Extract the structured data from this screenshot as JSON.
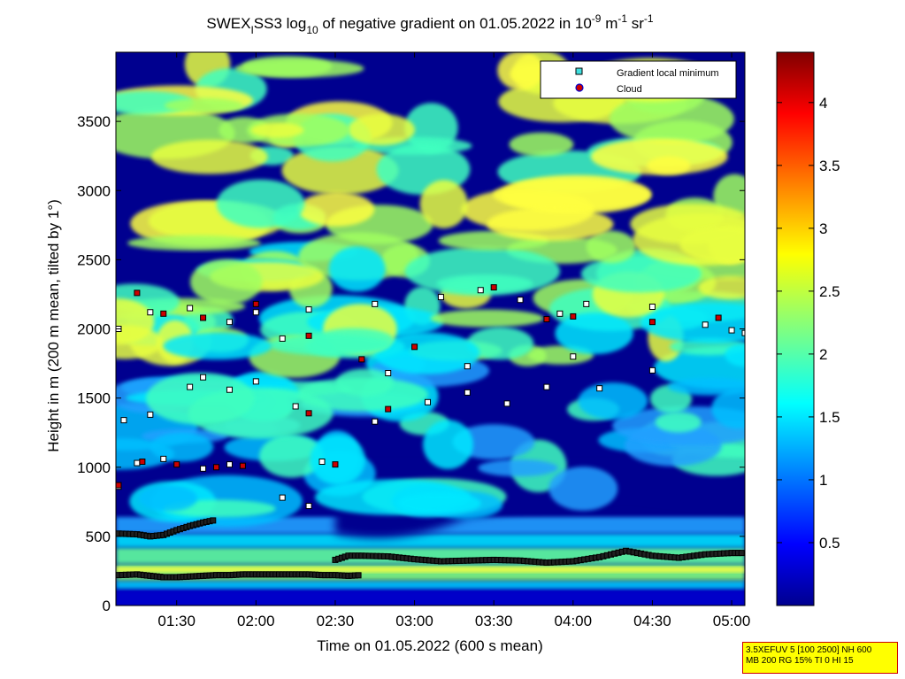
{
  "chart_data": {
    "type": "heatmap",
    "title": "SWEX_ISS3 log10 of negative gradient on 01.05.2022 in 10^-9 m^-1 sr^-1",
    "title_parts": {
      "a": "SWEX",
      "a_sub": "I",
      "b": "SS3 log",
      "b_sub": "10",
      "c": " of negative gradient on 01.05.2022 in 10",
      "c_sup": "-9",
      "d": " m",
      "d_sup": "-1",
      "e": " sr",
      "e_sup": "-1"
    },
    "xlabel": "Time on 01.05.2022 (600 s mean)",
    "ylabel": "Height in m (200 m mean, tilted by 1°)",
    "x_ticks": [
      "01:30",
      "02:00",
      "02:30",
      "03:00",
      "03:30",
      "04:00",
      "04:30",
      "05:00"
    ],
    "x_tick_minutes": [
      90,
      120,
      150,
      180,
      210,
      240,
      270,
      300
    ],
    "xlim_minutes": [
      67,
      305
    ],
    "y_ticks": [
      0,
      500,
      1000,
      1500,
      2000,
      2500,
      3000,
      3500
    ],
    "ylim": [
      0,
      4000
    ],
    "colorbar": {
      "range": [
        0,
        4.4
      ],
      "ticks": [
        "0.5",
        "1",
        "1.5",
        "2",
        "2.5",
        "3",
        "3.5",
        "4"
      ],
      "tick_values": [
        0.5,
        1,
        1.5,
        2,
        2.5,
        3,
        3.5,
        4
      ],
      "colormap": "jet"
    },
    "legend": {
      "position": "top-right",
      "entries": [
        {
          "label": "Gradient local minimum",
          "marker": "square",
          "color": "#40e0e0"
        },
        {
          "label": "Cloud",
          "marker": "circle",
          "color": "#cc0000",
          "edge": "#0000cc"
        }
      ]
    },
    "series": [
      {
        "name": "Gradient local minimum",
        "note": "lower persistent layer",
        "points": [
          [
            68,
            220
          ],
          [
            75,
            225
          ],
          [
            80,
            215
          ],
          [
            85,
            205
          ],
          [
            90,
            205
          ],
          [
            95,
            210
          ],
          [
            100,
            215
          ],
          [
            105,
            220
          ],
          [
            110,
            220
          ],
          [
            115,
            225
          ],
          [
            120,
            225
          ],
          [
            125,
            225
          ],
          [
            130,
            225
          ],
          [
            135,
            225
          ],
          [
            140,
            225
          ],
          [
            145,
            220
          ],
          [
            150,
            220
          ],
          [
            155,
            215
          ],
          [
            160,
            220
          ]
        ]
      },
      {
        "name": "Gradient local minimum",
        "note": "upper persistent layer",
        "points": [
          [
            68,
            520
          ],
          [
            75,
            515
          ],
          [
            80,
            500
          ],
          [
            85,
            510
          ],
          [
            90,
            545
          ],
          [
            95,
            575
          ],
          [
            100,
            600
          ],
          [
            105,
            620
          ],
          [
            150,
            330
          ],
          [
            155,
            360
          ],
          [
            160,
            360
          ],
          [
            170,
            355
          ],
          [
            180,
            335
          ],
          [
            190,
            320
          ],
          [
            200,
            325
          ],
          [
            210,
            330
          ],
          [
            220,
            325
          ],
          [
            230,
            310
          ],
          [
            240,
            320
          ],
          [
            250,
            350
          ],
          [
            260,
            395
          ],
          [
            270,
            360
          ],
          [
            280,
            345
          ],
          [
            290,
            370
          ],
          [
            300,
            380
          ],
          [
            305,
            380
          ]
        ]
      },
      {
        "name": "Gradient local minimum",
        "note": "scattered",
        "points": [
          [
            68,
            860
          ],
          [
            75,
            1030
          ],
          [
            85,
            1060
          ],
          [
            100,
            990
          ],
          [
            110,
            1020
          ],
          [
            130,
            780
          ],
          [
            140,
            720
          ],
          [
            145,
            1040
          ],
          [
            70,
            1340
          ],
          [
            80,
            1380
          ],
          [
            95,
            1580
          ],
          [
            110,
            1560
          ],
          [
            120,
            1620
          ],
          [
            135,
            1440
          ],
          [
            165,
            1330
          ],
          [
            185,
            1470
          ],
          [
            200,
            1540
          ],
          [
            215,
            1460
          ],
          [
            230,
            1580
          ],
          [
            250,
            1570
          ],
          [
            68,
            2000
          ],
          [
            80,
            2120
          ],
          [
            95,
            2150
          ],
          [
            110,
            2050
          ],
          [
            120,
            2120
          ],
          [
            130,
            1930
          ],
          [
            140,
            2140
          ],
          [
            165,
            2180
          ],
          [
            190,
            2230
          ],
          [
            205,
            2280
          ],
          [
            220,
            2210
          ],
          [
            235,
            2110
          ],
          [
            245,
            2180
          ],
          [
            270,
            2160
          ],
          [
            290,
            2030
          ],
          [
            300,
            1990
          ],
          [
            100,
            1650
          ],
          [
            170,
            1680
          ],
          [
            200,
            1730
          ],
          [
            240,
            1800
          ],
          [
            270,
            1700
          ],
          [
            305,
            1970
          ]
        ]
      },
      {
        "name": "Cloud",
        "points": [
          [
            68,
            870
          ],
          [
            77,
            1040
          ],
          [
            90,
            1020
          ],
          [
            105,
            1000
          ],
          [
            115,
            1010
          ],
          [
            140,
            1390
          ],
          [
            150,
            1020
          ],
          [
            75,
            2260
          ],
          [
            85,
            2110
          ],
          [
            100,
            2080
          ],
          [
            120,
            2180
          ],
          [
            140,
            1950
          ],
          [
            160,
            1780
          ],
          [
            170,
            1420
          ],
          [
            180,
            1870
          ],
          [
            210,
            2300
          ],
          [
            230,
            2070
          ],
          [
            240,
            2090
          ],
          [
            270,
            2050
          ],
          [
            295,
            2080
          ]
        ]
      }
    ]
  },
  "info_box": {
    "line1": "3.5XEFUV 5 [100 2500] NH 600",
    "line2": "MB 200 RG 15% TI 0 HI 15"
  }
}
